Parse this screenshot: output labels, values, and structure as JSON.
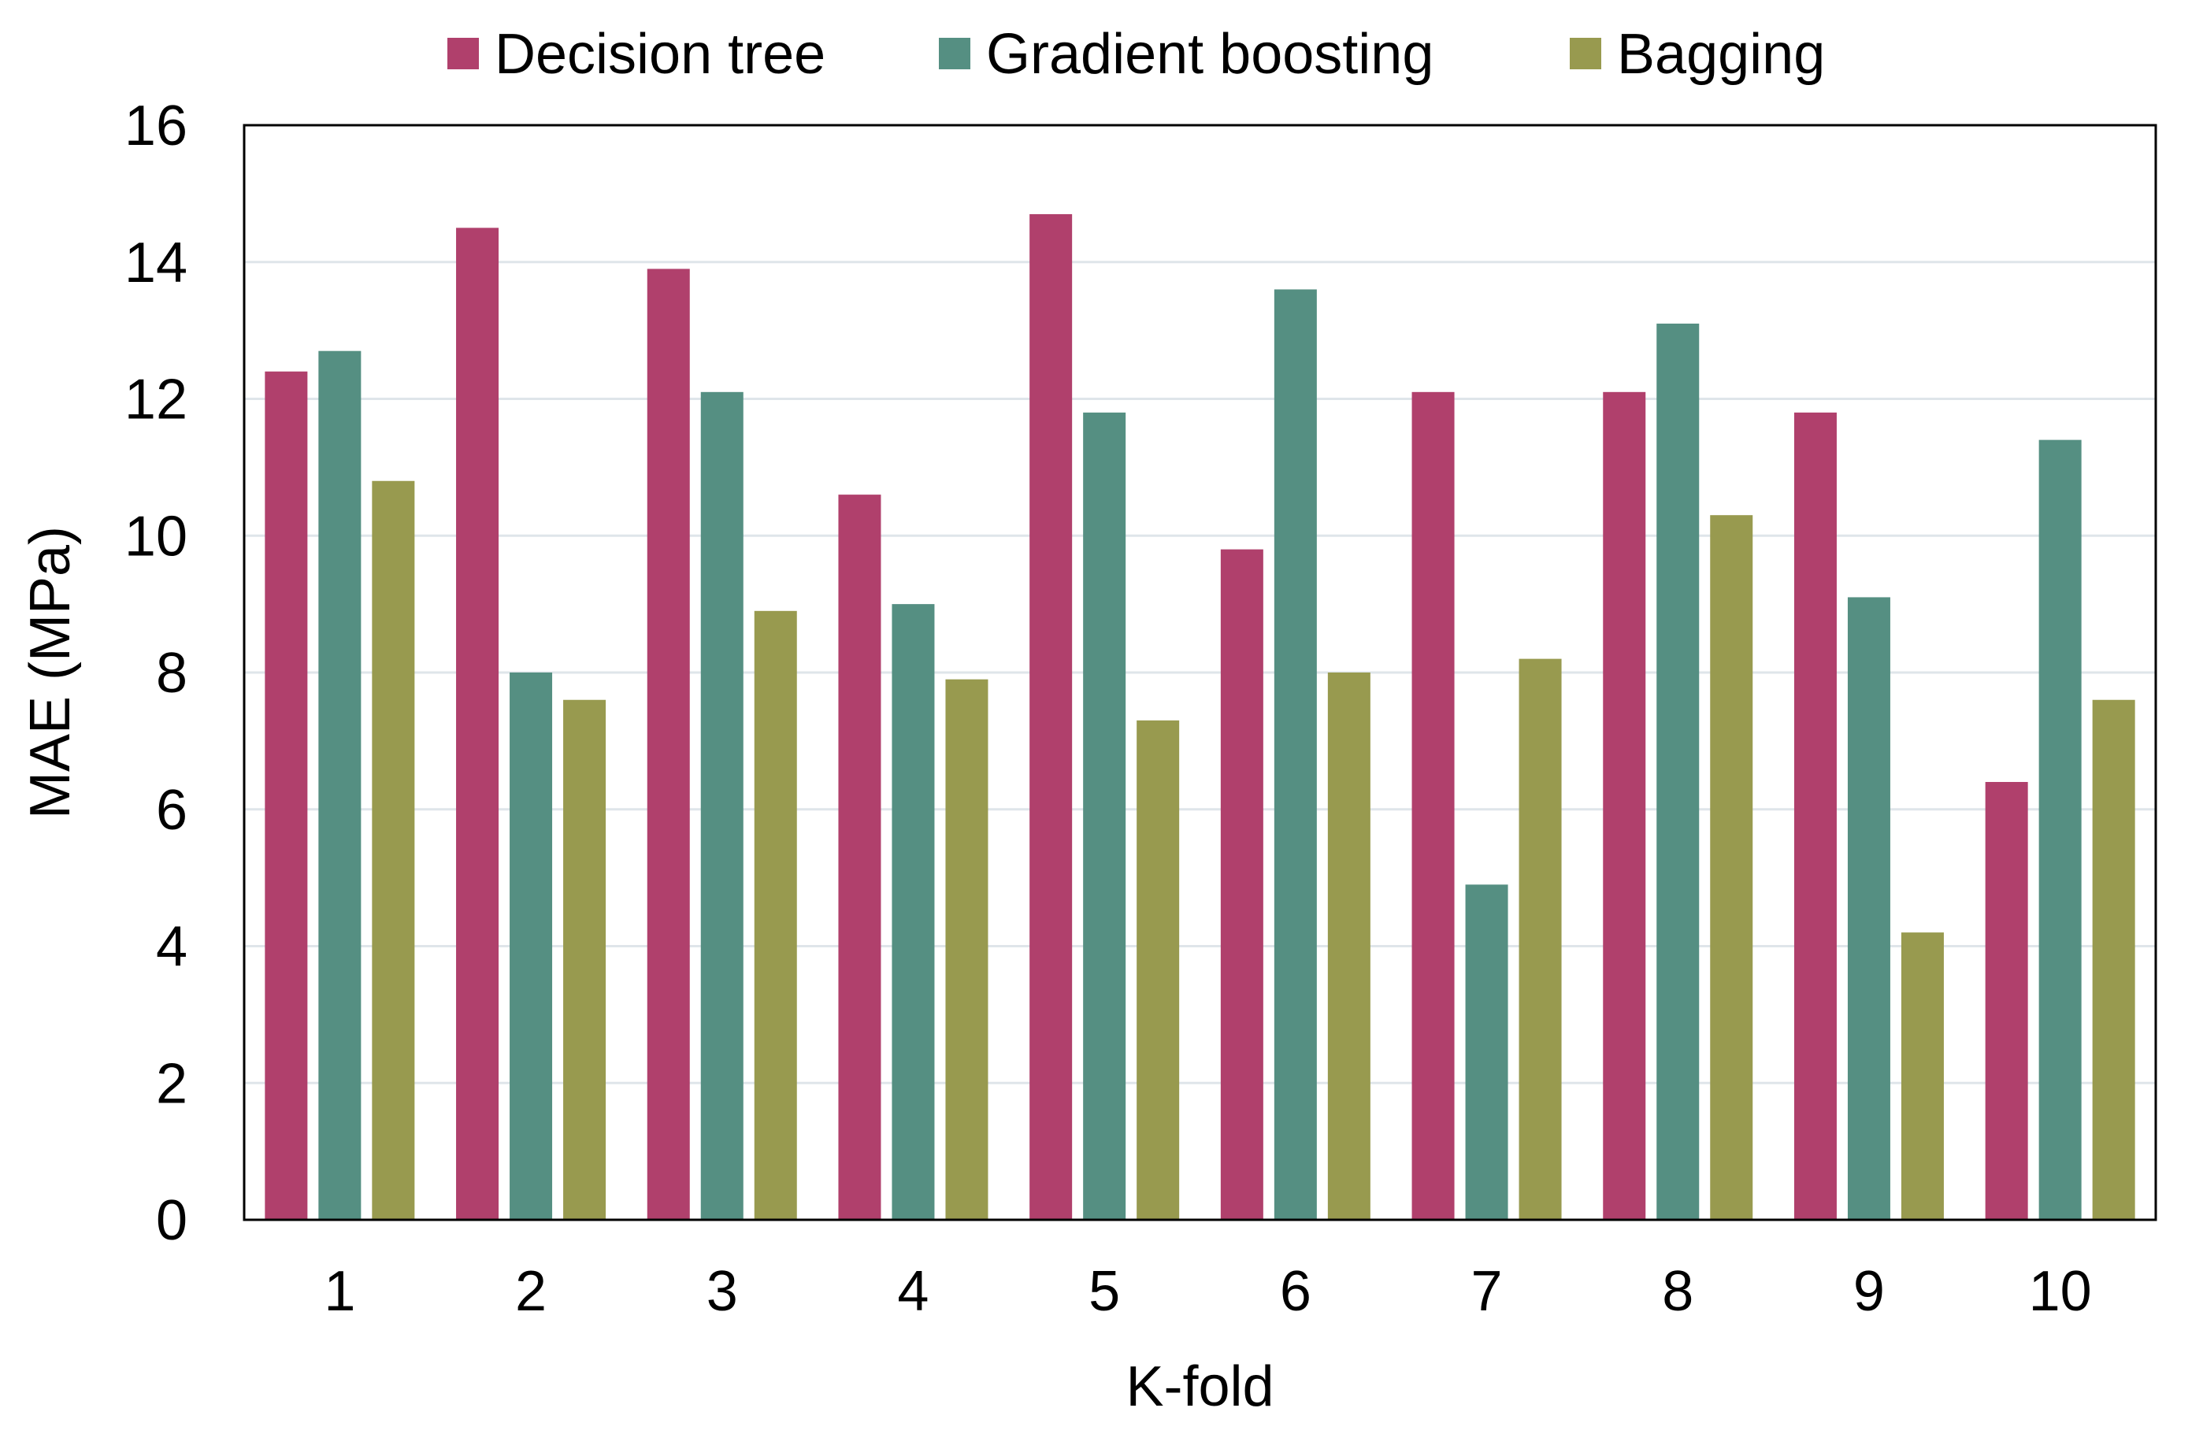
{
  "chart_data": {
    "type": "bar",
    "xlabel": "K-fold",
    "ylabel": "MAE (MPa)",
    "categories": [
      "1",
      "2",
      "3",
      "4",
      "5",
      "6",
      "7",
      "8",
      "9",
      "10"
    ],
    "ylim": [
      0,
      16
    ],
    "yticks": [
      "0",
      "2",
      "4",
      "6",
      "8",
      "10",
      "12",
      "14",
      "16"
    ],
    "grid": true,
    "legend_position": "top",
    "series": [
      {
        "name": "Decision tree",
        "color": "#B0406C",
        "values": [
          12.4,
          14.5,
          13.9,
          10.6,
          14.7,
          9.8,
          12.1,
          12.1,
          11.8,
          6.4
        ]
      },
      {
        "name": "Gradient boosting",
        "color": "#558F82",
        "values": [
          12.7,
          8.0,
          12.1,
          9.0,
          11.8,
          13.6,
          4.9,
          13.1,
          9.1,
          11.4
        ]
      },
      {
        "name": "Bagging",
        "color": "#989A4F",
        "values": [
          10.8,
          7.6,
          8.9,
          7.9,
          7.3,
          8.0,
          8.2,
          10.3,
          4.2,
          7.6
        ]
      }
    ]
  }
}
